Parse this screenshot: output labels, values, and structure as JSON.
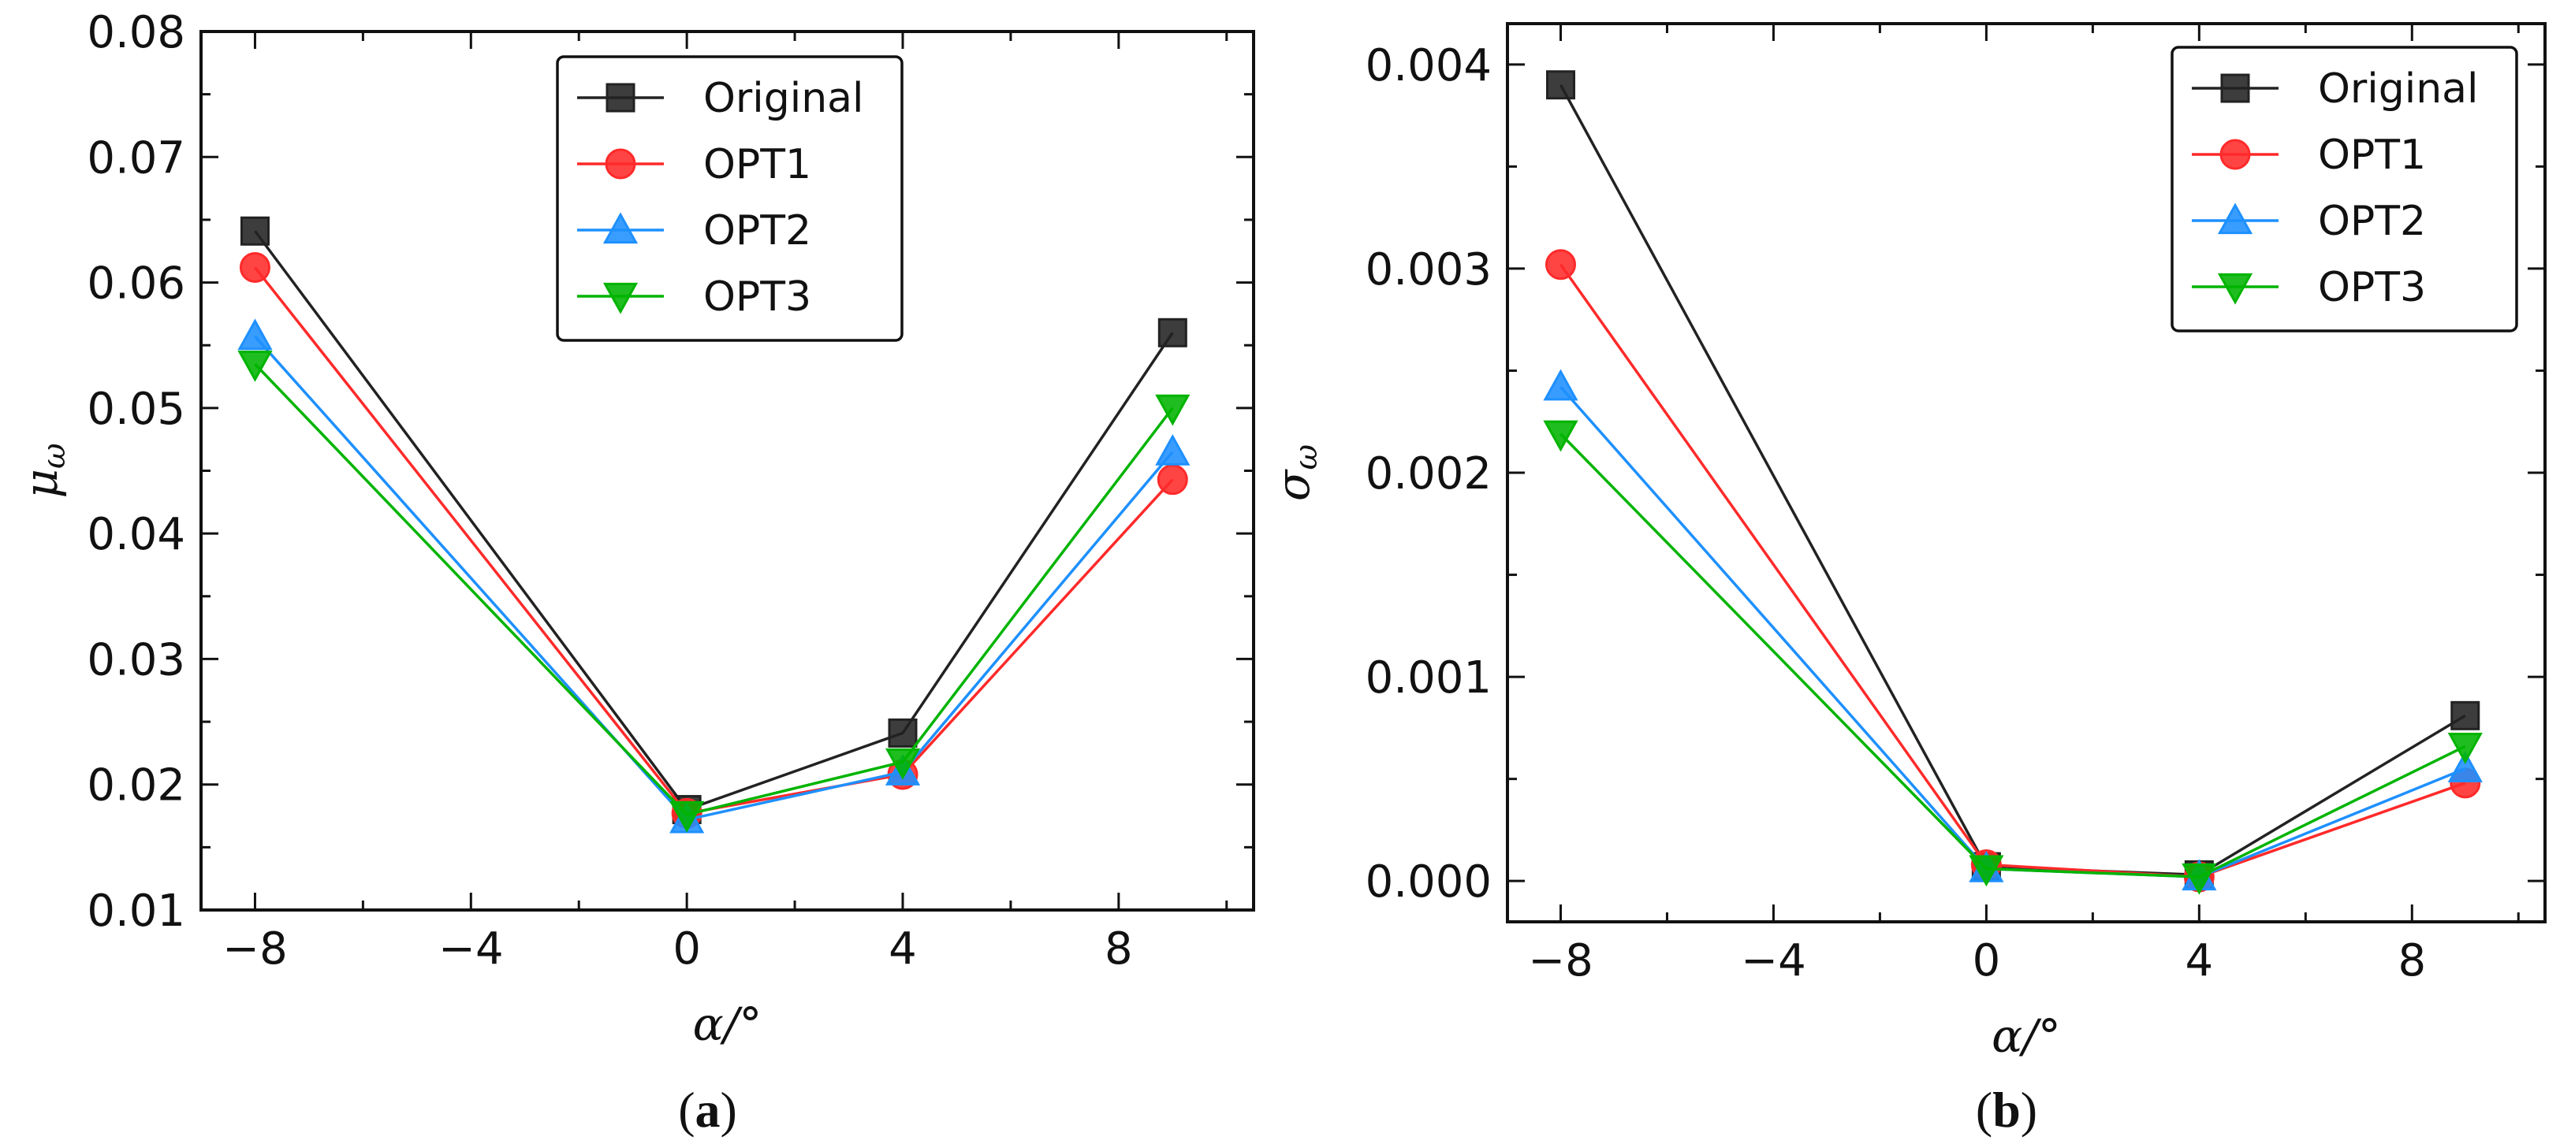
{
  "chart_data": [
    {
      "type": "line",
      "panel_label": "(a)",
      "panel_letter": "a",
      "xlabel": "α/°",
      "ylabel": "μω",
      "ylabel_main": "μ",
      "ylabel_sub": "ω",
      "x": [
        -8,
        0,
        4,
        9
      ],
      "xlim": [
        -9,
        10.5
      ],
      "ylim": [
        0.01,
        0.08
      ],
      "xticks": [
        "−8",
        "−4",
        "0",
        "4",
        "8"
      ],
      "xtick_values": [
        -8,
        -4,
        0,
        4,
        8
      ],
      "yticks": [
        "0.01",
        "0.02",
        "0.03",
        "0.04",
        "0.05",
        "0.06",
        "0.07",
        "0.08"
      ],
      "ytick_values": [
        0.01,
        0.02,
        0.03,
        0.04,
        0.05,
        0.06,
        0.07,
        0.08
      ],
      "legend_position": "top-center",
      "series": [
        {
          "name": "Original",
          "color": "#222222",
          "marker": "square",
          "values": [
            0.0641,
            0.018,
            0.0241,
            0.056
          ]
        },
        {
          "name": "OPT1",
          "color": "#ff2a2a",
          "marker": "circle",
          "values": [
            0.0612,
            0.0177,
            0.0208,
            0.0443
          ]
        },
        {
          "name": "OPT2",
          "color": "#1e90ff",
          "marker": "triangle-up",
          "values": [
            0.0557,
            0.0172,
            0.021,
            0.0465
          ]
        },
        {
          "name": "OPT3",
          "color": "#00b400",
          "marker": "triangle-down",
          "values": [
            0.0535,
            0.0176,
            0.0218,
            0.05
          ]
        }
      ]
    },
    {
      "type": "line",
      "panel_label": "(b)",
      "panel_letter": "b",
      "xlabel": "α/°",
      "ylabel": "σω",
      "ylabel_main": "σ",
      "ylabel_sub": "ω",
      "x": [
        -8,
        0,
        4,
        9
      ],
      "xlim": [
        -9,
        10.5
      ],
      "ylim": [
        -0.0002,
        0.0042
      ],
      "xticks": [
        "−8",
        "−4",
        "0",
        "4",
        "8"
      ],
      "xtick_values": [
        -8,
        -4,
        0,
        4,
        8
      ],
      "yticks": [
        "0.000",
        "0.001",
        "0.002",
        "0.003",
        "0.004"
      ],
      "ytick_values": [
        0.0,
        0.001,
        0.002,
        0.003,
        0.004
      ],
      "legend_position": "top-right",
      "series": [
        {
          "name": "Original",
          "color": "#222222",
          "marker": "square",
          "values": [
            0.0039,
            7e-05,
            3e-05,
            0.00081
          ]
        },
        {
          "name": "OPT1",
          "color": "#ff2a2a",
          "marker": "circle",
          "values": [
            0.00302,
            8e-05,
            2e-05,
            0.00048
          ]
        },
        {
          "name": "OPT2",
          "color": "#1e90ff",
          "marker": "triangle-up",
          "values": [
            0.00242,
            6e-05,
            2e-05,
            0.00055
          ]
        },
        {
          "name": "OPT3",
          "color": "#00b400",
          "marker": "triangle-down",
          "values": [
            0.00219,
            6e-05,
            2e-05,
            0.00066
          ]
        }
      ]
    }
  ]
}
